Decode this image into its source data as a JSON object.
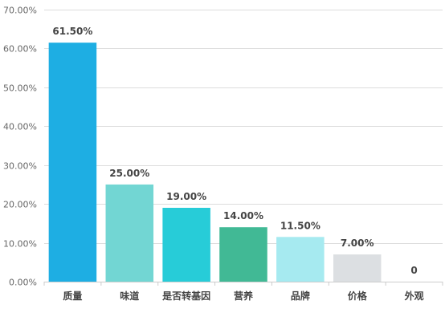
{
  "chart_data": {
    "type": "bar",
    "categories": [
      "质量",
      "味道",
      "是否转基因",
      "营养",
      "品牌",
      "价格",
      "外观"
    ],
    "values": [
      61.5,
      25.0,
      19.0,
      14.0,
      11.5,
      7.0,
      0
    ],
    "data_labels": [
      "61.50%",
      "25.00%",
      "19.00%",
      "14.00%",
      "11.50%",
      "7.00%",
      "0"
    ],
    "colors": [
      "#1eaee3",
      "#72d6d3",
      "#27ccd8",
      "#41b995",
      "#a6eaf0",
      "#dcdfe2",
      "#dcdfe2"
    ],
    "ylim": [
      0,
      70
    ],
    "yticks": [
      0,
      10,
      20,
      30,
      40,
      50,
      60,
      70
    ],
    "ytick_labels": [
      "0.00%",
      "10.00%",
      "20.00%",
      "30.00%",
      "40.00%",
      "50.00%",
      "60.00%",
      "70.00%"
    ],
    "grid": true,
    "title": "",
    "xlabel": "",
    "ylabel": ""
  }
}
